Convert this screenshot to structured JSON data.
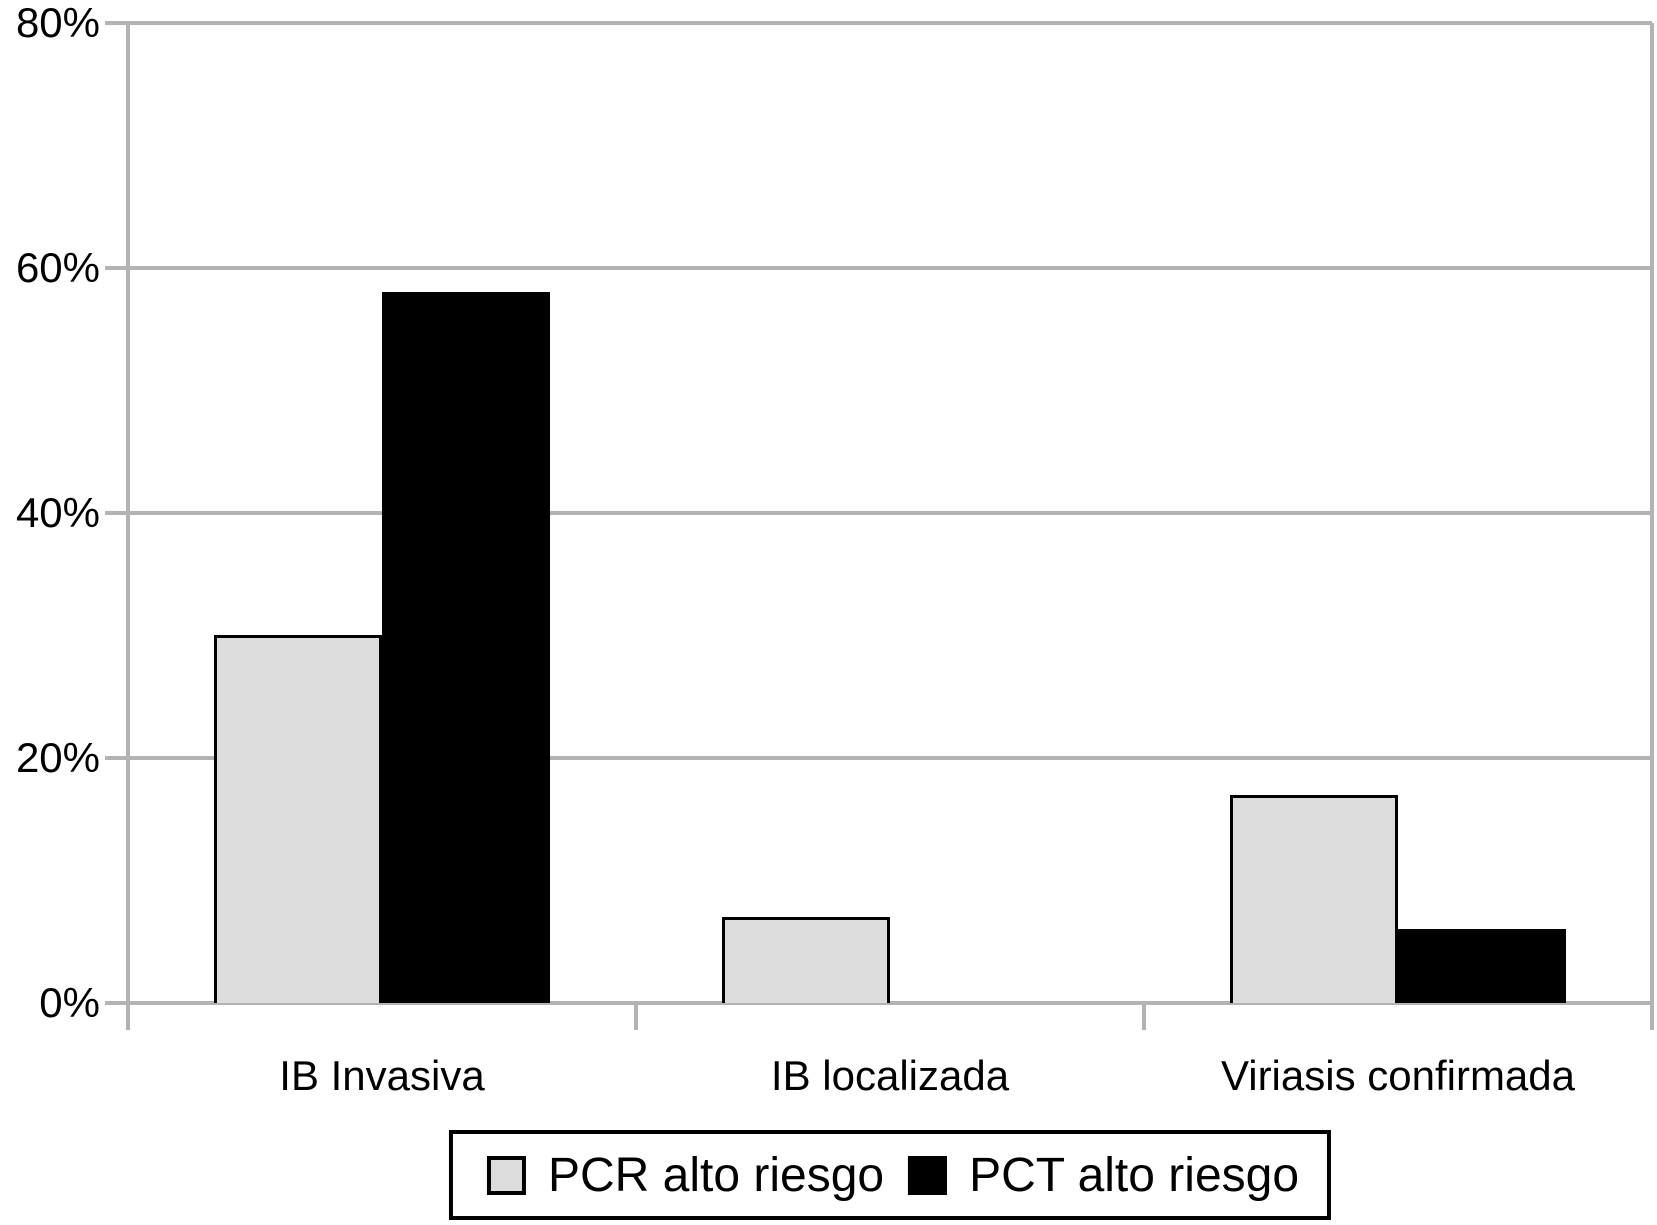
{
  "figure": {
    "background": "#ffffff",
    "text_color": "#000000"
  },
  "chart_data": {
    "type": "bar",
    "title": "",
    "xlabel": "",
    "ylabel": "",
    "categories": [
      "IB Invasiva",
      "IB localizada",
      "Viriasis confirmada"
    ],
    "series": [
      {
        "name": "PCR alto riesgo",
        "color": "#dcdcdc",
        "values": [
          30,
          7,
          17
        ]
      },
      {
        "name": "PCT alto riesgo",
        "color": "#000000",
        "values": [
          58,
          0,
          6
        ]
      }
    ],
    "ylim": [
      0,
      80
    ],
    "yticks": [
      0,
      20,
      40,
      60,
      80
    ],
    "ytick_labels": [
      "0%",
      "20%",
      "40%",
      "60%",
      "80%"
    ],
    "grid": "horizontal",
    "grid_color": "#b3b3b3",
    "bar_border_color": "#000000",
    "legend_position": "bottom"
  }
}
